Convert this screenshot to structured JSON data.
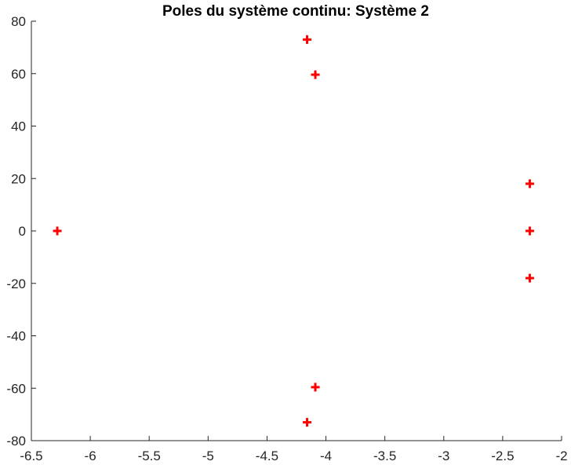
{
  "chart_data": {
    "type": "scatter",
    "title": "Poles du système continu: Système 2",
    "xlabel": "",
    "ylabel": "",
    "xlim": [
      -6.5,
      -2
    ],
    "ylim": [
      -80,
      80
    ],
    "x_ticks": [
      "-6.5",
      "-6",
      "-5.5",
      "-5",
      "-4.5",
      "-4",
      "-3.5",
      "-3",
      "-2.5",
      "-2"
    ],
    "y_ticks": [
      "80",
      "60",
      "40",
      "20",
      "0",
      "-20",
      "-40",
      "-60",
      "-80"
    ],
    "grid": false,
    "marker": "+",
    "marker_color": "#ff0000",
    "axis_color": "#262626",
    "series": [
      {
        "points": [
          {
            "x": -6.28,
            "y": 0
          },
          {
            "x": -4.16,
            "y": 73
          },
          {
            "x": -4.16,
            "y": -73
          },
          {
            "x": -4.09,
            "y": 59.6
          },
          {
            "x": -4.09,
            "y": -59.6
          },
          {
            "x": -2.27,
            "y": 18
          },
          {
            "x": -2.27,
            "y": 0
          },
          {
            "x": -2.27,
            "y": -18
          }
        ]
      }
    ]
  }
}
